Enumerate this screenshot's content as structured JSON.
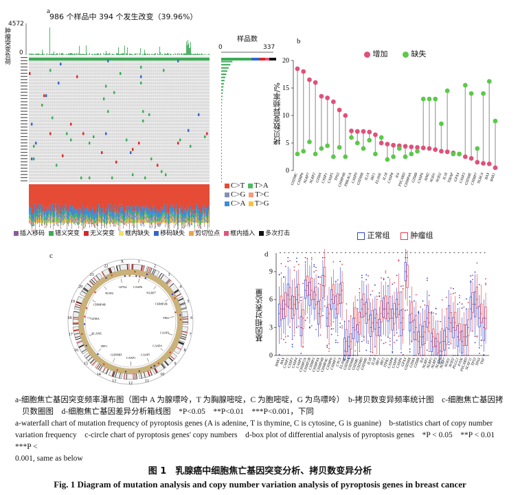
{
  "panel_a": {
    "letter": "a",
    "title": "986 个样品中 394 个发生改变（39.96%）",
    "ylabel": "肿瘤突变负荷",
    "y_max": "4572",
    "y_min": "0",
    "side_title": "样品数",
    "side_min": "0",
    "side_max": "337",
    "sub_legend": [
      "C>T",
      "T>A",
      "C>G",
      "T>C",
      "C>A",
      "T>G"
    ],
    "sub_colors": {
      "C>T": "#e64b35",
      "T>A": "#4dbb65",
      "C>G": "#8491b4",
      "T>C": "#f39b7f",
      "C>A": "#3c8dd8",
      "T>G": "#f5c242"
    },
    "mut_legend": [
      {
        "label": "插入移码",
        "color": "#8b5a9e"
      },
      {
        "label": "错义突变",
        "color": "#3bab55"
      },
      {
        "label": "无义突变",
        "color": "#d62728"
      },
      {
        "label": "框内缺失",
        "color": "#f2e06a"
      },
      {
        "label": "移码缺失",
        "color": "#3366cc"
      },
      {
        "label": "剪切位点",
        "color": "#f0a04b"
      },
      {
        "label": "框内插入",
        "color": "#e0557a"
      },
      {
        "label": "多次打击",
        "color": "#111111"
      }
    ]
  },
  "panel_b": {
    "letter": "b",
    "legend": [
      "增加",
      "缺失"
    ],
    "ylabel": "拷贝数变异频率/%",
    "yticks": [
      "0",
      "5",
      "10",
      "15",
      "20"
    ],
    "colors": {
      "gain": "#e0507a",
      "loss": "#5cc84a"
    }
  },
  "panel_c": {
    "letter": "c"
  },
  "panel_d": {
    "letter": "d",
    "legend": [
      "正常组",
      "肿瘤组"
    ],
    "ylabel": "基因相对表达量",
    "yticks": [
      "0",
      "3",
      "6",
      "9"
    ],
    "colors": {
      "normal": "#2b3fd1",
      "tumor": "#e03a4a"
    }
  },
  "chart_data": [
    {
      "type": "scatter",
      "panel": "b",
      "ylabel": "拷贝数变异频率/%",
      "ylim": [
        0,
        20
      ],
      "categories": [
        "GSDMC",
        "CHMP6",
        "NLRP7",
        "NLRP2",
        "GZMA",
        "CASP1",
        "CASP5",
        "TP63",
        "CHMP4B",
        "PRKACA",
        "CASP9",
        "GSDMB",
        "IL1A",
        "IRF1",
        "ELANE",
        "IL1B",
        "CASP8",
        "IL6",
        "PYCARD",
        "CHMP4A",
        "GZMB",
        "CASP6",
        "AIM2",
        "NOD1",
        "NOD2",
        "IL18",
        "TIRAP",
        "GPX4",
        "CASP3",
        "GSDME",
        "CHMP7",
        "NLRC4",
        "BAX",
        "BAK1"
      ],
      "series": [
        {
          "name": "增加",
          "values": [
            18.5,
            18,
            16.5,
            16,
            13.5,
            13.2,
            12.5,
            11,
            10,
            7.2,
            7.1,
            7.1,
            7,
            6.5,
            5,
            4.8,
            4.6,
            4.5,
            4.4,
            4.3,
            4.2,
            4.1,
            4,
            3.8,
            3.5,
            3.4,
            3.2,
            3,
            2.5,
            2.2,
            1.5,
            1.3,
            1.2,
            0.5
          ]
        },
        {
          "name": "缺失",
          "values": [
            3,
            3.5,
            5.2,
            3,
            4,
            4.5,
            2.5,
            4.2,
            2.5,
            6,
            5,
            4,
            5.5,
            3,
            6,
            2,
            2.5,
            4,
            2.5,
            3,
            3.5,
            13,
            13,
            13,
            8.5,
            14.5,
            3,
            3,
            15.5,
            14,
            4,
            14,
            16.2,
            9
          ]
        }
      ]
    },
    {
      "type": "box",
      "panel": "d",
      "ylabel": "基因相对表达量",
      "ylim": [
        0,
        11
      ],
      "categories": [
        "BAK1",
        "BAX",
        "CASP1",
        "CASP3",
        "CASP4",
        "CASP5",
        "CHMP2A",
        "CHMP2B",
        "CHMP3",
        "CHMP4A",
        "CHMP4B",
        "CHMP4C",
        "CHMP6",
        "CHMP7",
        "CYCS",
        "ELANE",
        "GSDMA",
        "GSDMB",
        "GSDMC",
        "GSDMD",
        "GSDME",
        "IL18",
        "IL1B",
        "IRF1",
        "IRF2",
        "ITPR1",
        "CASP8",
        "CASP9",
        "CASP6",
        "GPX4",
        "GSDMB",
        "GZMA",
        "GZMB",
        "IL6",
        "NLRP1",
        "NLRP2",
        "NLRP3",
        "NLRP6",
        "NLRP7",
        "NOD1",
        "NOD2",
        "PLCG1",
        "PJVK",
        "PYCARD",
        "SCAF11",
        "TP53",
        "TP63",
        "TNF"
      ],
      "series": [
        {
          "name": "正常组",
          "medians": [
            4.5,
            5,
            6.5,
            5,
            6,
            3,
            7,
            6.5,
            6,
            4.5,
            7.5,
            4,
            6,
            5,
            6.5,
            0.5,
            1,
            3,
            2.5,
            5,
            4.5,
            3,
            4,
            3,
            5,
            4.5,
            4,
            5,
            3.5,
            9,
            3.5,
            2.5,
            1.5,
            2,
            4,
            1.5,
            1,
            0.5,
            1.5,
            4,
            3,
            2,
            1.5,
            2,
            5,
            5.5,
            4,
            3
          ]
        },
        {
          "name": "肿瘤组",
          "medians": [
            5,
            5.5,
            6,
            5.5,
            6.5,
            4,
            7.5,
            7,
            6.5,
            5,
            8.5,
            4.5,
            6.5,
            5.5,
            7,
            1.5,
            1.5,
            4,
            3.5,
            5.5,
            5,
            3.5,
            3.5,
            4.5,
            5,
            5,
            4.5,
            5.5,
            4,
            8.5,
            4.5,
            3,
            2,
            2.5,
            3.5,
            2,
            1.5,
            1.5,
            2,
            3.5,
            3.5,
            2.5,
            2,
            3,
            5.5,
            6,
            4.5,
            4
          ]
        }
      ]
    }
  ],
  "caption": {
    "cn_line1": "a-细胞焦亡基因突变频率瀑布图（图中 A 为腺嘌呤，T 为胸腺嘧啶，C 为胞嘧啶，G 为鸟嘌呤）　b-拷贝数变异频率统计图　c-细胞焦亡基因拷",
    "cn_line2": "贝数圈图　d-细胞焦亡基因差异分析箱线图　*P<0.05　**P<0.01　***P<0.001，下同",
    "en_line1": "a-waterfall chart of mutation frequency of pyroptosis genes (A is adenine, T is thymine, C is cytosine, G is guanine)　b-statistics chart of copy number",
    "en_line2": "variation frequency　c-circle chart of pyroptosis genes' copy numbers　d-box plot of differential analysis of pyroptosis genes　*P < 0.05　**P < 0.01　***P <",
    "en_line3": "0.001, same as below"
  },
  "figure_title_cn": "图 1　乳腺癌中细胞焦亡基因突变分析、拷贝数变异分析",
  "figure_title_en": "Fig. 1  Diagram of mutation analysis and copy number variation analysis of pyroptosis genes in breast cancer",
  "panel_c_labels": [
    "CASP6",
    "NLRP7",
    "CHMP2B",
    "TP63",
    "CASP3",
    "CASP4",
    "CASP5",
    "CASP1",
    "GSDMD",
    "IRF1",
    "ELANE",
    "GZMA",
    "CHMP4B",
    "NOD2",
    "GPX4"
  ],
  "chromosomes": [
    "1",
    "2",
    "3",
    "4",
    "5",
    "6",
    "7",
    "8",
    "9",
    "10",
    "11",
    "12",
    "13",
    "14",
    "15",
    "16",
    "17",
    "18",
    "19",
    "20",
    "21",
    "22",
    "X"
  ]
}
